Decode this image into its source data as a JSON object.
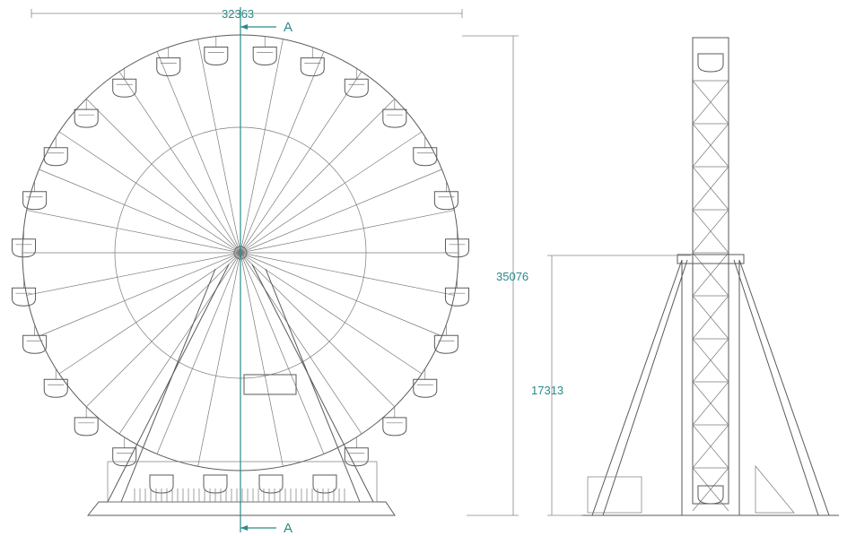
{
  "dimensions": {
    "width": "32363",
    "total_height": "35076",
    "axle_height": "17313"
  },
  "section": {
    "top": "A",
    "bottom": "A"
  }
}
